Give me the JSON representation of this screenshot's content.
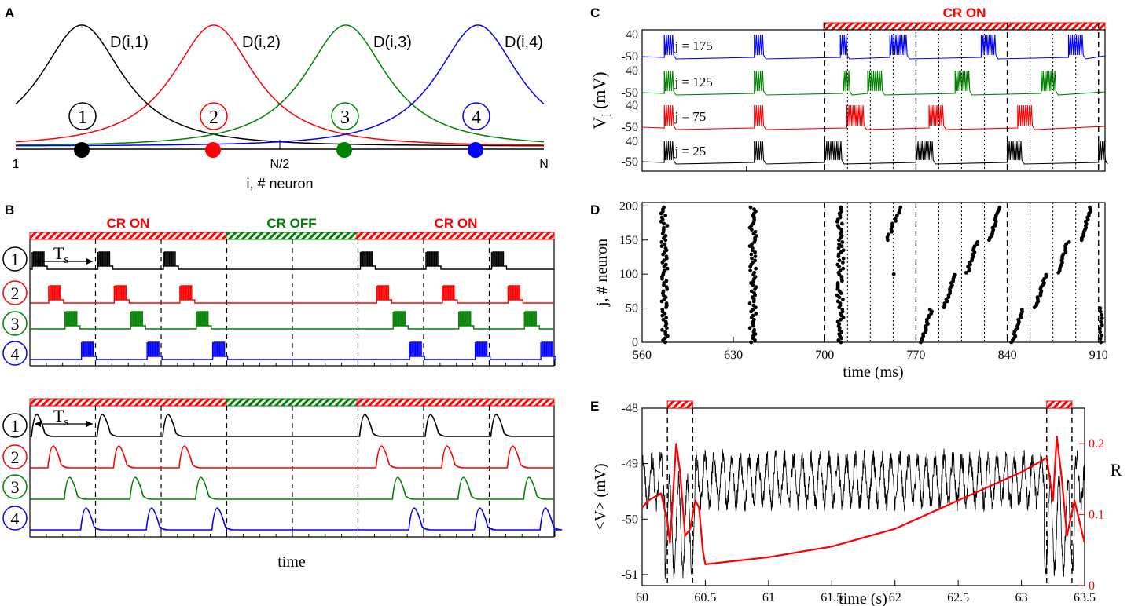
{
  "colors": {
    "n1": "#000000",
    "n2": "#ff0000",
    "n3": "#008000",
    "n4": "#0000ff",
    "cr_on": "#ff0000",
    "cr_off": "#008000"
  },
  "panels": {
    "A": "A",
    "B": "B",
    "C": "C",
    "D": "D",
    "E": "E"
  },
  "chart_data": [
    {
      "panel": "A",
      "type": "line",
      "title": "",
      "series": [
        {
          "name": "D(i,1)",
          "center": 0.125
        },
        {
          "name": "D(i,2)",
          "center": 0.375
        },
        {
          "name": "D(i,3)",
          "center": 0.625
        },
        {
          "name": "D(i,4)",
          "center": 0.875
        }
      ],
      "site_labels": [
        "1",
        "2",
        "3",
        "4"
      ],
      "x_ticks": [
        "1",
        "N/2",
        "N"
      ],
      "xlabel": "i, # neuron"
    },
    {
      "panel": "B",
      "type": "line",
      "title": "",
      "bands": [
        "CR ON",
        "CR OFF",
        "CR ON"
      ],
      "stimulus_period_label": "T",
      "stimulus_period_subscript": "s",
      "neuron_labels": [
        "1",
        "2",
        "3",
        "4"
      ],
      "periods_on_first": [
        0,
        1,
        2
      ],
      "periods_on_second": [
        5,
        6,
        7
      ],
      "xlabel": "time"
    },
    {
      "panel": "C",
      "type": "line",
      "band": "CR ON",
      "ylabel_main": "V",
      "ylabel_sub": "j",
      "ylabel_unit": "(mV)",
      "tick_top": "40",
      "tick_bottom": "-50",
      "traces": [
        {
          "label": "j = 175"
        },
        {
          "label": "j = 125"
        },
        {
          "label": "j = 75"
        },
        {
          "label": "j = 25"
        }
      ]
    },
    {
      "panel": "D",
      "type": "scatter",
      "xlabel": "time (ms)",
      "ylabel": "j, # neuron",
      "x_ticks": [
        560,
        630,
        700,
        770,
        840,
        910
      ],
      "y_ticks": [
        0,
        50,
        100,
        150,
        200
      ],
      "xlim": [
        560,
        915
      ],
      "ylim": [
        0,
        205
      ],
      "synchronous_bursts_ms": [
        577,
        645,
        712
      ],
      "cr_onsets_ms": [
        700,
        770,
        840,
        910
      ]
    },
    {
      "panel": "E",
      "type": "line",
      "xlabel": "time (s)",
      "ylabel_left": "<V> (mV)",
      "ylabel_right": "R",
      "x_ticks": [
        "60",
        "60.5",
        "61",
        "61.5",
        "62",
        "62.5",
        "63",
        "63.5"
      ],
      "y_ticks_left": [
        "-48",
        "-49",
        "-50",
        "-51"
      ],
      "y_ticks_right": [
        "0",
        "0.1",
        "0.2"
      ],
      "xlim": [
        60,
        63.5
      ],
      "ylim_left": [
        -51.2,
        -48
      ],
      "ylim_right": [
        0,
        0.25
      ],
      "cr_intervals_s": [
        [
          60.2,
          60.4
        ],
        [
          63.2,
          63.4
        ]
      ],
      "series": [
        {
          "name": "<V>",
          "oscillation_period_s": 0.07,
          "mean_mV": -49.3,
          "amplitude_mV": 0.4
        },
        {
          "name": "R",
          "points": [
            [
              60,
              0.11
            ],
            [
              60.05,
              0.12
            ],
            [
              60.15,
              0.13
            ],
            [
              60.2,
              0.09
            ],
            [
              60.22,
              0.06
            ],
            [
              60.27,
              0.2
            ],
            [
              60.3,
              0.16
            ],
            [
              60.34,
              0.07
            ],
            [
              60.38,
              0.08
            ],
            [
              60.42,
              0.12
            ],
            [
              60.45,
              0.11
            ],
            [
              60.48,
              0.05
            ],
            [
              60.5,
              0.03
            ],
            [
              61,
              0.04
            ],
            [
              61.5,
              0.055
            ],
            [
              62,
              0.08
            ],
            [
              62.5,
              0.12
            ],
            [
              63,
              0.16
            ],
            [
              63.2,
              0.18
            ],
            [
              63.25,
              0.12
            ],
            [
              63.28,
              0.21
            ],
            [
              63.32,
              0.15
            ],
            [
              63.36,
              0.07
            ],
            [
              63.42,
              0.12
            ],
            [
              63.5,
              0.06
            ]
          ]
        }
      ]
    }
  ]
}
